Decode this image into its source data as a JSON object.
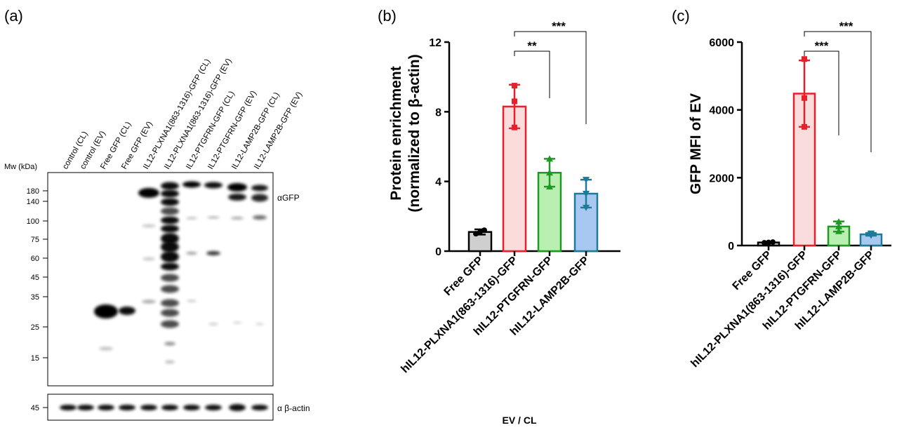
{
  "panel_a": {
    "label": "(a)",
    "mw_label": "Mw (kDa)",
    "lanes": [
      "control (CL)",
      "control (EV)",
      "Free GFP (CL)",
      "Free GFP  (EV)",
      "IL12-PLXNA1(863-1316)-GFP (CL)",
      "IL12-PLXNA1(863-1316)-GFP (EV)",
      "IL12-PTGFRN-GFP (CL)",
      "IL12-PTGFRN-GFP (EV)",
      "IL12-LAMP2B-GFP (CL)",
      "IL12-LAMP2B-GFP (EV)"
    ],
    "markers": [
      "180",
      "140",
      "100",
      "75",
      "60",
      "45",
      "35",
      "25",
      "15"
    ],
    "marker_values": [
      180,
      140,
      100,
      75,
      60,
      45,
      35,
      25,
      15
    ],
    "actin_marker": "45",
    "blot_label_gfp": "αGFP",
    "blot_label_actin": "α β-actin"
  },
  "chart_data": [
    {
      "type": "bar",
      "panel": "(b)",
      "categories": [
        "Free GFP",
        "hIL12-PLXNA1(863-1316)-GFP",
        "hIL12-PTGFRN-GFP",
        "hIL12-LAMP2B-GFP"
      ],
      "values": [
        1.1,
        8.3,
        4.5,
        3.3
      ],
      "errors": [
        0.15,
        1.25,
        0.8,
        0.8
      ],
      "points": [
        [
          1.0,
          1.1,
          1.2
        ],
        [
          7.1,
          8.6,
          9.5
        ],
        [
          3.7,
          4.5,
          5.3
        ],
        [
          2.5,
          3.3,
          4.1
        ]
      ],
      "ylabel_line1": "Protein enrichment",
      "ylabel_line2": "(normalized to β-actin)",
      "xlabel": "EV / CL",
      "ylim": [
        0,
        12
      ],
      "yticks": [
        0,
        4,
        8,
        12
      ],
      "colors": {
        "fill": [
          "#cfcfcf",
          "#fbdcdc",
          "#b9f0b2",
          "#a8c8f2"
        ],
        "stroke": [
          "#000000",
          "#e8202a",
          "#1e9a24",
          "#1d7a98"
        ]
      },
      "significance": [
        {
          "from": 1,
          "to": 2,
          "label": "**"
        },
        {
          "from": 1,
          "to": 3,
          "label": "***"
        }
      ]
    },
    {
      "type": "bar",
      "panel": "(c)",
      "categories": [
        "Free GFP",
        "hIL12-PLXNA1(863-1316)-GFP",
        "hIL12-PTGFRN-GFP",
        "hIL12-LAMP2B-GFP"
      ],
      "values": [
        90,
        4480,
        560,
        330
      ],
      "errors": [
        15,
        980,
        150,
        40
      ],
      "points": [
        [
          80,
          90,
          100
        ],
        [
          3500,
          4350,
          5500
        ],
        [
          420,
          560,
          700
        ],
        [
          300,
          330,
          360
        ]
      ],
      "ylabel": "GFP MFI of EV",
      "ylim": [
        0,
        6000
      ],
      "yticks": [
        0,
        2000,
        4000,
        6000
      ],
      "colors": {
        "fill": [
          "#cfcfcf",
          "#fbdcdc",
          "#b9f0b2",
          "#a8c8f2"
        ],
        "stroke": [
          "#000000",
          "#e8202a",
          "#1e9a24",
          "#1d7a98"
        ]
      },
      "significance": [
        {
          "from": 1,
          "to": 2,
          "label": "***"
        },
        {
          "from": 1,
          "to": 3,
          "label": "***"
        }
      ]
    }
  ]
}
